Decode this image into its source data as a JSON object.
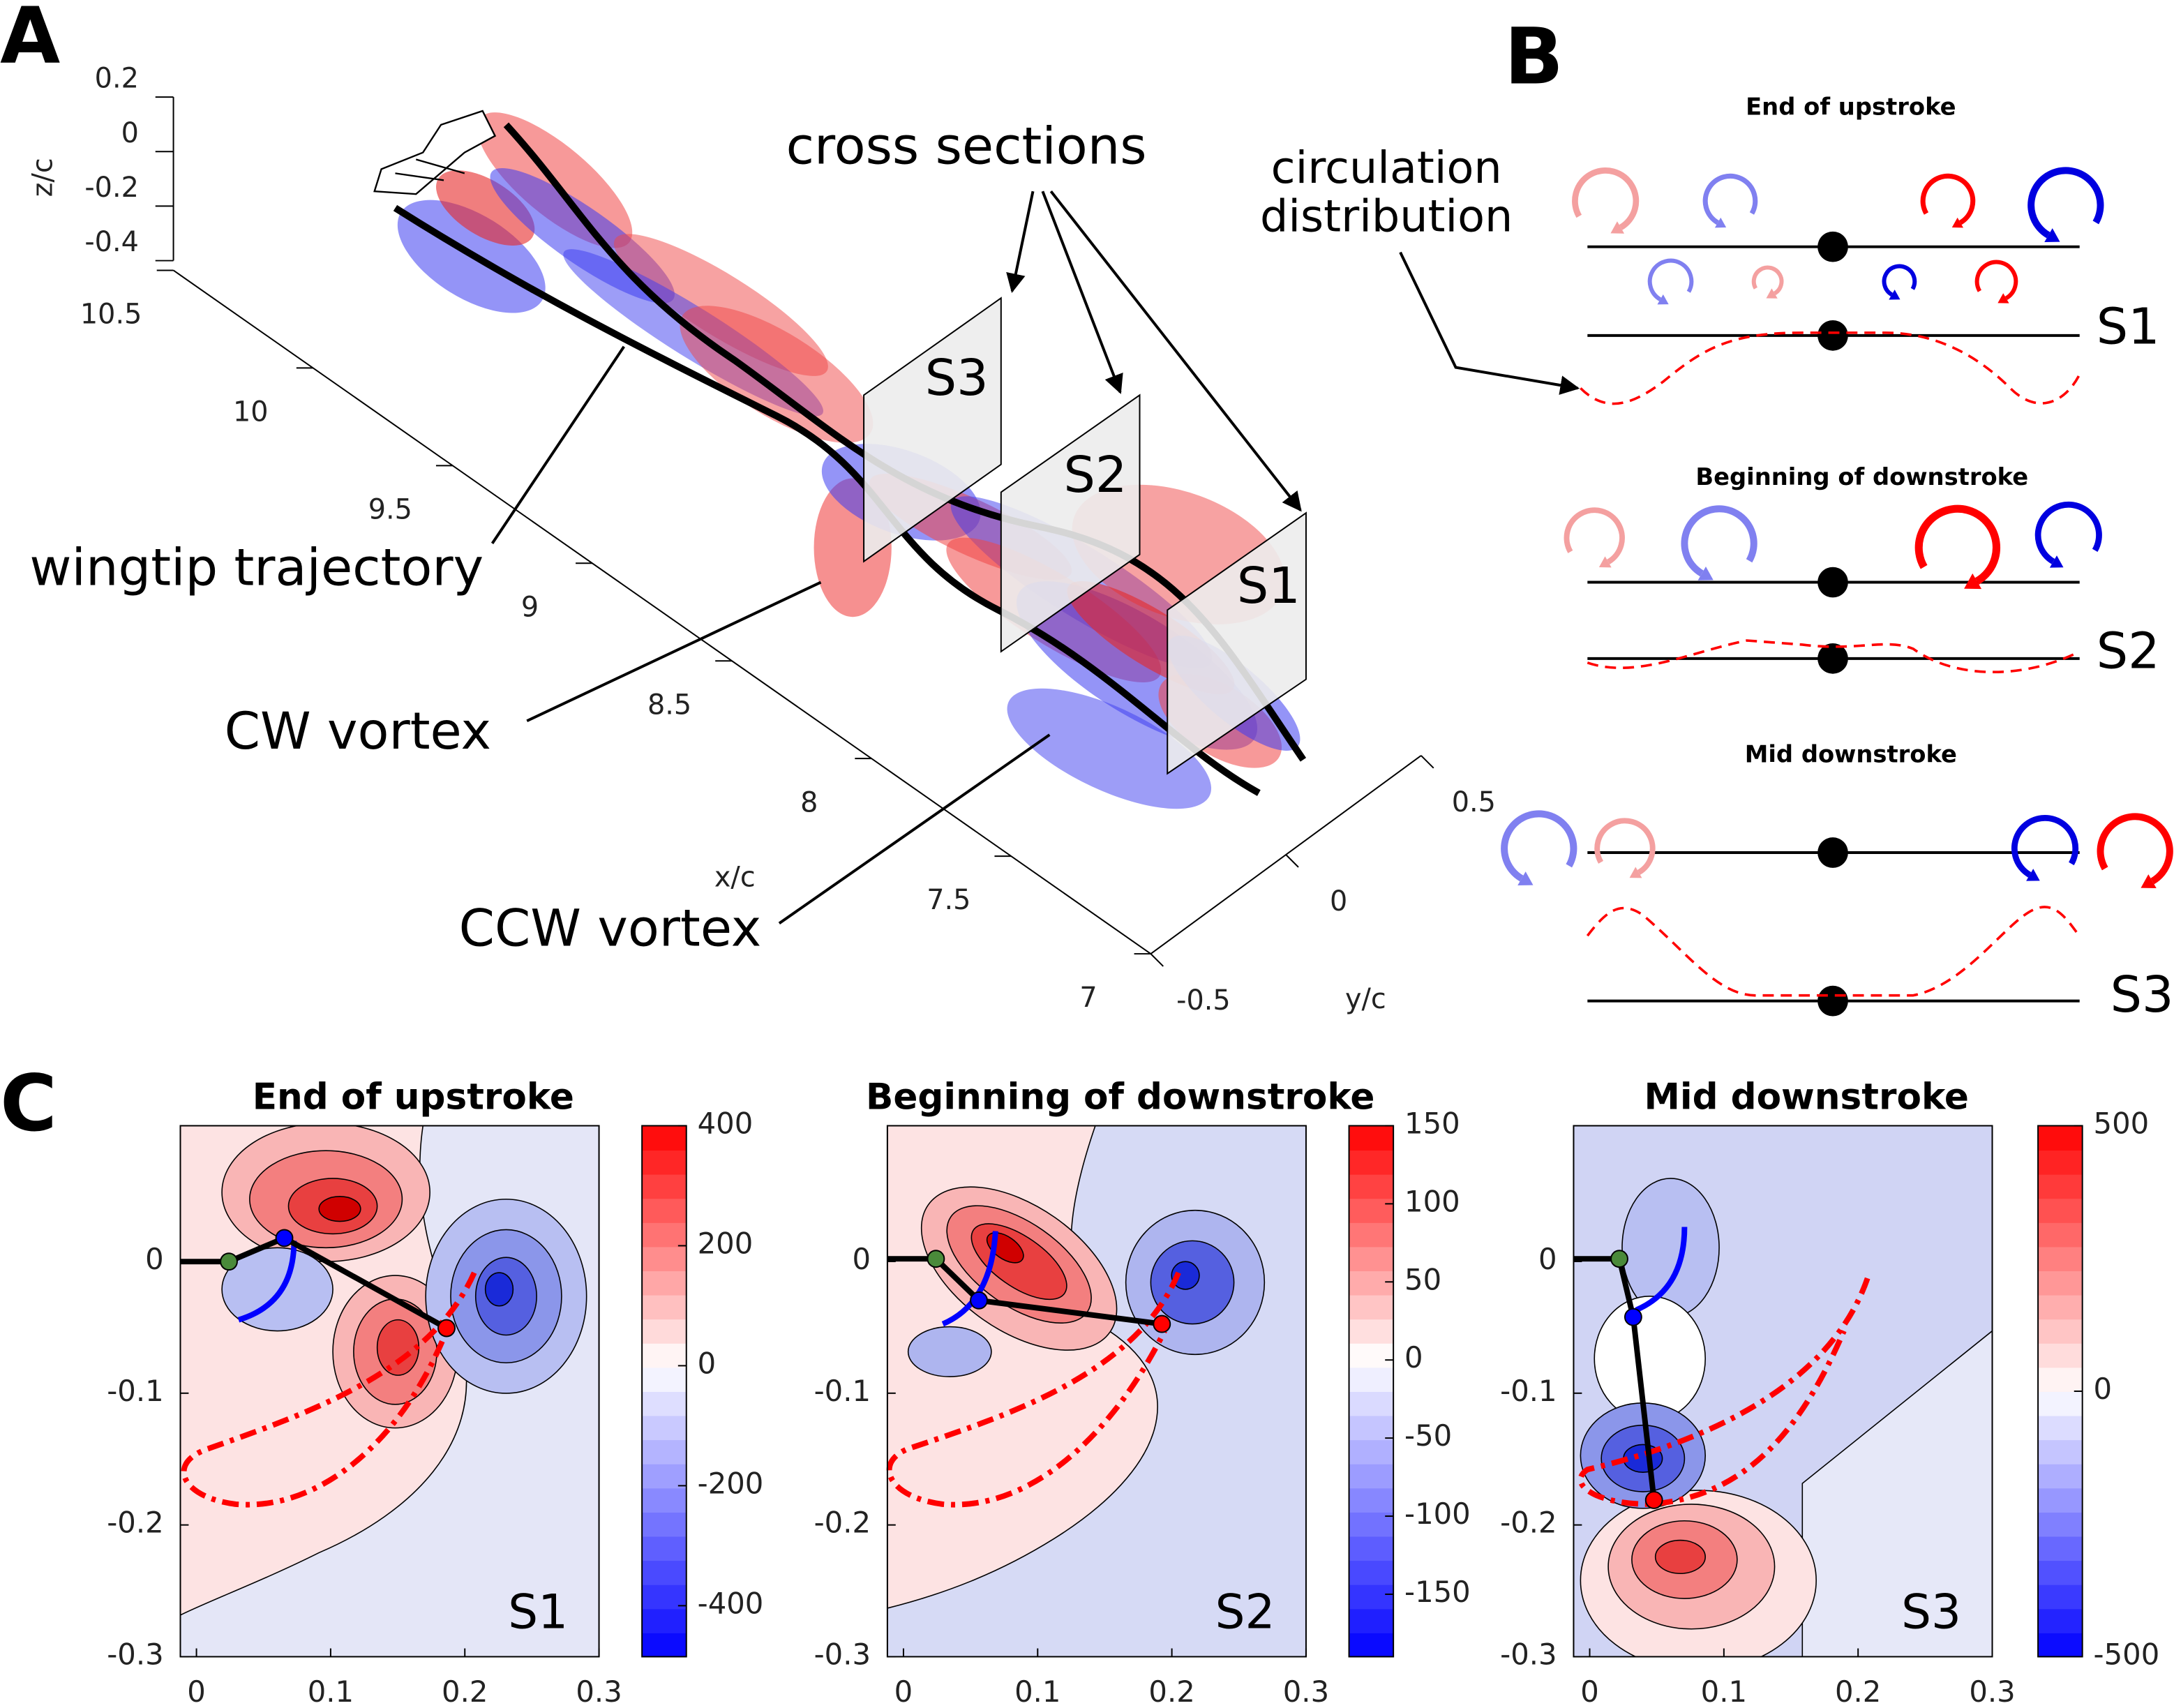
{
  "panels": {
    "A": {
      "label": "A",
      "z_axis": {
        "label": "z/c",
        "ticks": [
          0.2,
          0,
          -0.2,
          -0.4
        ]
      },
      "x_axis": {
        "label": "x/c",
        "ticks": [
          10.5,
          10,
          9.5,
          9,
          8.5,
          8,
          7.5,
          7
        ]
      },
      "y_axis": {
        "label": "y/c",
        "ticks": [
          0.5,
          0,
          -0.5
        ]
      },
      "annotations": [
        "cross sections",
        "wingtip trajectory",
        "CW vortex",
        "CCW vortex"
      ],
      "sections": [
        "S3",
        "S2",
        "S1"
      ]
    },
    "B": {
      "label": "B",
      "annotation": [
        "circulation",
        "distribution"
      ],
      "sections": [
        {
          "title": "End of upstroke",
          "label": "S1"
        },
        {
          "title": "Beginning of downstroke",
          "label": "S2"
        },
        {
          "title": "Mid downstroke",
          "label": "S3"
        }
      ]
    },
    "C": {
      "label": "C",
      "plots": [
        {
          "title": "End of upstroke",
          "label": "S1",
          "xlim": [
            -0.012,
            0.3
          ],
          "xticks": [
            0,
            0.1,
            0.2,
            0.3
          ],
          "ylim": [
            -0.3,
            0.103
          ],
          "yticks": [
            0,
            -0.1,
            -0.2,
            -0.3
          ],
          "colorbar": {
            "lim": [
              -485,
              400
            ],
            "ticks": [
              400,
              200,
              0,
              -200,
              -400
            ]
          }
        },
        {
          "title": "Beginning of downstroke",
          "label": "S2",
          "xlim": [
            -0.012,
            0.3
          ],
          "xticks": [
            0,
            0.1,
            0.2,
            0.3
          ],
          "ylim": [
            -0.3,
            0.103
          ],
          "yticks": [
            0,
            -0.1,
            -0.2,
            -0.3
          ],
          "colorbar": {
            "lim": [
              -190,
              150
            ],
            "ticks": [
              150,
              100,
              50,
              0,
              -50,
              -100,
              -150
            ]
          }
        },
        {
          "title": "Mid downstroke",
          "label": "S3",
          "xlim": [
            -0.012,
            0.3
          ],
          "xticks": [
            0,
            0.1,
            0.2,
            0.3
          ],
          "ylim": [
            -0.3,
            0.103
          ],
          "yticks": [
            0,
            -0.1,
            -0.2,
            -0.3
          ],
          "colorbar": {
            "lim": [
              -500,
              500
            ],
            "ticks": [
              500,
              0,
              -500
            ]
          }
        }
      ]
    }
  }
}
